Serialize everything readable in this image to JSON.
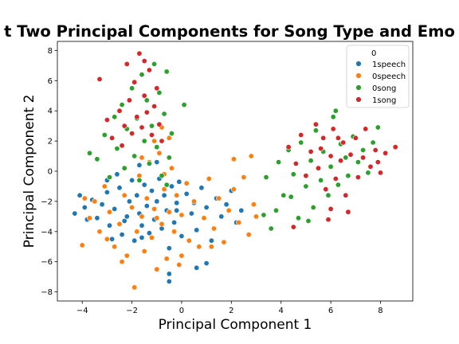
{
  "chart_data": {
    "type": "scatter",
    "title": "t Two Principal Components for Song Type and Emo",
    "xlabel": "Principal Component 1",
    "ylabel": "Principal Component 2",
    "xlim": [
      -5.0,
      9.3
    ],
    "ylim": [
      -8.6,
      8.6
    ],
    "x_ticks": [
      "−4",
      "−2",
      "0",
      "2",
      "4",
      "6",
      "8"
    ],
    "y_ticks": [
      "−8",
      "−6",
      "−4",
      "−2",
      "0",
      "2",
      "4",
      "6",
      "8"
    ],
    "grid": false,
    "legend": {
      "title": "0",
      "placement": "top-right"
    },
    "series": [
      {
        "name": "1speech",
        "color": "#1f77b4",
        "points": [
          [
            -4.3,
            -2.8
          ],
          [
            -3.9,
            -2.4
          ],
          [
            -3.6,
            -1.9
          ],
          [
            -3.4,
            -3.1
          ],
          [
            -3.2,
            -2.2
          ],
          [
            -3.0,
            -1.4
          ],
          [
            -2.9,
            -3.6
          ],
          [
            -2.7,
            -2.5
          ],
          [
            -2.5,
            -1.1
          ],
          [
            -2.4,
            -4.2
          ],
          [
            -2.2,
            -3.0
          ],
          [
            -2.1,
            -2.0
          ],
          [
            -2.0,
            -0.6
          ],
          [
            -1.9,
            -4.6
          ],
          [
            -1.8,
            -1.6
          ],
          [
            -1.7,
            -2.8
          ],
          [
            -1.6,
            -3.6
          ],
          [
            -1.5,
            -0.9
          ],
          [
            -1.4,
            -2.3
          ],
          [
            -1.3,
            -4.1
          ],
          [
            -1.2,
            -1.3
          ],
          [
            -1.1,
            -3.2
          ],
          [
            -1.0,
            -2.0
          ],
          [
            -0.9,
            -0.5
          ],
          [
            -0.8,
            -3.8
          ],
          [
            -0.7,
            -1.6
          ],
          [
            -0.6,
            -2.6
          ],
          [
            -0.5,
            -5.1
          ],
          [
            -0.4,
            -1.0
          ],
          [
            -0.3,
            -3.4
          ],
          [
            -0.2,
            -2.1
          ],
          [
            -0.1,
            -0.7
          ],
          [
            0.0,
            -4.3
          ],
          [
            0.2,
            -1.5
          ],
          [
            0.4,
            -2.8
          ],
          [
            0.6,
            -3.9
          ],
          [
            0.8,
            -1.1
          ],
          [
            1.0,
            -2.4
          ],
          [
            1.2,
            -4.6
          ],
          [
            1.4,
            -1.8
          ],
          [
            1.6,
            -3.0
          ],
          [
            1.8,
            -2.2
          ],
          [
            2.0,
            -1.3
          ],
          [
            2.2,
            -3.4
          ],
          [
            2.4,
            -2.6
          ],
          [
            -0.5,
            -6.8
          ],
          [
            -0.5,
            -7.3
          ],
          [
            0.6,
            -6.4
          ],
          [
            1.0,
            -6.1
          ],
          [
            -2.6,
            -0.2
          ],
          [
            -1.7,
            0.4
          ],
          [
            -1.0,
            0.6
          ],
          [
            -3.0,
            -0.6
          ],
          [
            -2.3,
            -3.3
          ],
          [
            -1.6,
            -4.4
          ],
          [
            -2.8,
            -4.5
          ],
          [
            -4.1,
            -1.6
          ],
          [
            -3.8,
            -3.2
          ],
          [
            -0.2,
            -2.6
          ],
          [
            0.5,
            -2.1
          ]
        ]
      },
      {
        "name": "0speech",
        "color": "#ff7f0e",
        "points": [
          [
            -4.0,
            -4.9
          ],
          [
            -3.7,
            -3.1
          ],
          [
            -3.5,
            -2.0
          ],
          [
            -3.3,
            -4.0
          ],
          [
            -3.1,
            -1.0
          ],
          [
            -2.9,
            -2.7
          ],
          [
            -2.7,
            -5.0
          ],
          [
            -2.5,
            -3.5
          ],
          [
            -2.3,
            -1.6
          ],
          [
            -2.2,
            -5.6
          ],
          [
            -2.0,
            -2.4
          ],
          [
            -1.9,
            -7.7
          ],
          [
            -1.8,
            -4.0
          ],
          [
            -1.7,
            -0.3
          ],
          [
            -1.6,
            -3.0
          ],
          [
            -1.5,
            -5.3
          ],
          [
            -1.4,
            -1.8
          ],
          [
            -1.3,
            0.6
          ],
          [
            -1.2,
            -4.4
          ],
          [
            -1.1,
            -2.5
          ],
          [
            -1.0,
            -6.5
          ],
          [
            -0.9,
            1.2
          ],
          [
            -0.8,
            -3.5
          ],
          [
            -0.7,
            -1.2
          ],
          [
            -0.6,
            -5.8
          ],
          [
            -0.5,
            -2.7
          ],
          [
            -0.4,
            0.2
          ],
          [
            -0.3,
            -4.0
          ],
          [
            -0.2,
            -1.6
          ],
          [
            -0.1,
            -6.2
          ],
          [
            0.0,
            -2.9
          ],
          [
            0.2,
            -0.8
          ],
          [
            0.3,
            -4.6
          ],
          [
            0.5,
            -2.0
          ],
          [
            0.7,
            -5.0
          ],
          [
            0.9,
            -3.1
          ],
          [
            1.1,
            -0.5
          ],
          [
            1.3,
            -3.8
          ],
          [
            1.5,
            -1.8
          ],
          [
            1.7,
            -4.7
          ],
          [
            1.9,
            -2.6
          ],
          [
            2.1,
            -1.2
          ],
          [
            2.3,
            -3.4
          ],
          [
            2.5,
            -0.4
          ],
          [
            2.7,
            -4.2
          ],
          [
            2.9,
            -2.2
          ],
          [
            3.0,
            -3.0
          ],
          [
            2.8,
            1.0
          ],
          [
            2.1,
            0.8
          ],
          [
            -0.8,
            2.9
          ],
          [
            -0.5,
            2.2
          ],
          [
            -1.1,
            2.0
          ],
          [
            -1.6,
            0.9
          ],
          [
            -0.7,
            -0.2
          ],
          [
            -2.4,
            -6.0
          ],
          [
            -3.0,
            -4.5
          ],
          [
            0.0,
            -5.6
          ],
          [
            1.2,
            -5.0
          ],
          [
            -3.9,
            -1.8
          ],
          [
            -1.0,
            -3.1
          ]
        ]
      },
      {
        "name": "0song",
        "color": "#2ca02c",
        "points": [
          [
            -3.4,
            0.8
          ],
          [
            -3.1,
            2.4
          ],
          [
            -2.9,
            -0.4
          ],
          [
            -2.7,
            3.6
          ],
          [
            -2.6,
            1.5
          ],
          [
            -2.4,
            4.4
          ],
          [
            -2.3,
            0.2
          ],
          [
            -2.2,
            2.8
          ],
          [
            -2.0,
            5.5
          ],
          [
            -1.9,
            1.0
          ],
          [
            -1.8,
            3.5
          ],
          [
            -1.7,
            -0.6
          ],
          [
            -1.6,
            6.4
          ],
          [
            -1.5,
            2.0
          ],
          [
            -1.4,
            4.7
          ],
          [
            -1.3,
            0.5
          ],
          [
            -1.2,
            3.0
          ],
          [
            -1.1,
            7.1
          ],
          [
            -1.0,
            1.6
          ],
          [
            -0.9,
            5.2
          ],
          [
            -0.8,
            -0.3
          ],
          [
            -0.7,
            3.8
          ],
          [
            -0.6,
            6.6
          ],
          [
            -0.5,
            0.9
          ],
          [
            -0.4,
            2.5
          ],
          [
            0.1,
            4.4
          ],
          [
            -3.7,
            1.2
          ],
          [
            -0.6,
            -0.9
          ],
          [
            3.4,
            -0.4
          ],
          [
            3.6,
            -3.8
          ],
          [
            3.8,
            -2.6
          ],
          [
            3.9,
            0.6
          ],
          [
            4.1,
            -1.6
          ],
          [
            4.3,
            1.4
          ],
          [
            4.5,
            -0.2
          ],
          [
            4.7,
            -3.1
          ],
          [
            4.8,
            1.9
          ],
          [
            5.0,
            -1.0
          ],
          [
            5.2,
            0.7
          ],
          [
            5.3,
            -2.4
          ],
          [
            5.4,
            2.7
          ],
          [
            5.6,
            -0.6
          ],
          [
            5.7,
            1.3
          ],
          [
            5.9,
            -1.6
          ],
          [
            6.0,
            0.3
          ],
          [
            6.1,
            3.6
          ],
          [
            6.3,
            -0.9
          ],
          [
            6.4,
            1.8
          ],
          [
            6.6,
            0.9
          ],
          [
            6.7,
            -0.3
          ],
          [
            6.9,
            2.3
          ],
          [
            7.1,
            0.6
          ],
          [
            7.3,
            1.4
          ],
          [
            7.5,
            -0.1
          ],
          [
            7.7,
            1.9
          ],
          [
            7.9,
            2.9
          ],
          [
            6.2,
            4.0
          ],
          [
            4.4,
            -1.7
          ],
          [
            3.3,
            -2.9
          ],
          [
            5.1,
            -3.3
          ]
        ]
      },
      {
        "name": "1song",
        "color": "#d62728",
        "points": [
          [
            -3.3,
            6.1
          ],
          [
            -3.0,
            3.4
          ],
          [
            -2.8,
            2.2
          ],
          [
            -2.5,
            4.0
          ],
          [
            -2.3,
            3.0
          ],
          [
            -2.2,
            7.1
          ],
          [
            -2.1,
            4.7
          ],
          [
            -2.0,
            2.5
          ],
          [
            -1.9,
            5.9
          ],
          [
            -1.8,
            3.6
          ],
          [
            -1.7,
            7.8
          ],
          [
            -1.6,
            2.9
          ],
          [
            -1.5,
            5.0
          ],
          [
            -1.4,
            3.9
          ],
          [
            -1.3,
            6.7
          ],
          [
            -1.2,
            2.4
          ],
          [
            -1.1,
            4.3
          ],
          [
            -1.0,
            5.5
          ],
          [
            -0.9,
            3.1
          ],
          [
            -0.8,
            2.0
          ],
          [
            -1.5,
            7.3
          ],
          [
            -2.4,
            1.7
          ],
          [
            4.3,
            1.6
          ],
          [
            4.6,
            0.5
          ],
          [
            4.8,
            2.4
          ],
          [
            5.0,
            -0.3
          ],
          [
            5.2,
            1.3
          ],
          [
            5.4,
            3.1
          ],
          [
            5.5,
            0.2
          ],
          [
            5.7,
            2.2
          ],
          [
            5.8,
            -1.2
          ],
          [
            6.0,
            1.0
          ],
          [
            6.1,
            2.8
          ],
          [
            6.2,
            -0.5
          ],
          [
            6.4,
            0.7
          ],
          [
            6.5,
            1.9
          ],
          [
            6.6,
            -1.6
          ],
          [
            6.8,
            1.1
          ],
          [
            7.0,
            2.2
          ],
          [
            7.1,
            -0.4
          ],
          [
            7.3,
            0.9
          ],
          [
            7.4,
            2.8
          ],
          [
            7.6,
            0.3
          ],
          [
            7.8,
            1.4
          ],
          [
            8.0,
            -0.1
          ],
          [
            8.2,
            1.2
          ],
          [
            8.6,
            1.6
          ],
          [
            6.7,
            -2.7
          ],
          [
            6.0,
            -2.5
          ],
          [
            4.5,
            -3.7
          ],
          [
            5.9,
            -3.2
          ],
          [
            7.9,
            0.6
          ],
          [
            6.3,
            2.2
          ],
          [
            5.6,
            1.5
          ]
        ]
      }
    ]
  }
}
